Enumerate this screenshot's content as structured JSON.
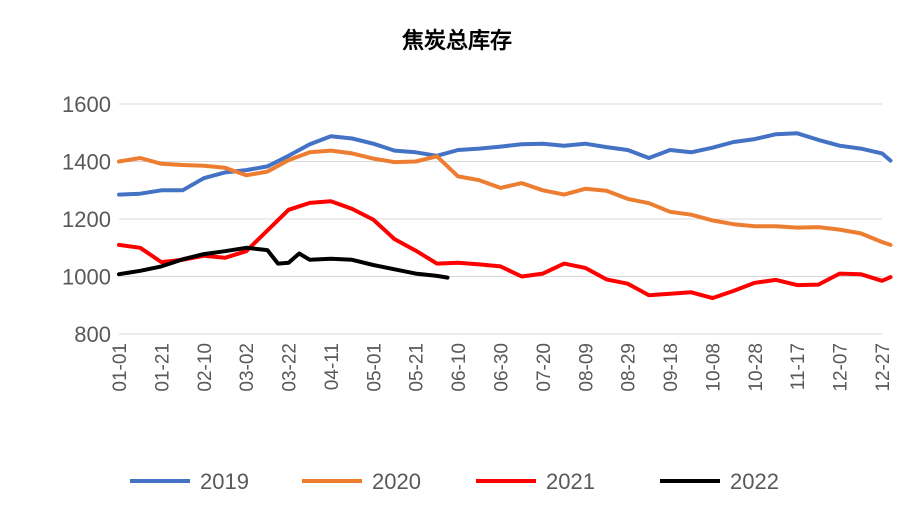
{
  "chart_data": {
    "type": "line",
    "title": "焦炭总库存",
    "xlabel": "",
    "ylabel": "",
    "ylim": [
      800,
      1600
    ],
    "yticks": [
      800,
      1000,
      1200,
      1400,
      1600
    ],
    "grid": true,
    "legend_position": "bottom",
    "x_tick_labels": [
      "01-01",
      "01-21",
      "02-10",
      "03-02",
      "03-22",
      "04-11",
      "05-01",
      "05-21",
      "06-10",
      "06-30",
      "07-20",
      "08-09",
      "08-29",
      "09-18",
      "10-08",
      "10-28",
      "11-17",
      "12-07",
      "12-27"
    ],
    "series": [
      {
        "name": "2019",
        "color": "#4472C4",
        "values": [
          [
            "01-01",
            1285
          ],
          [
            "01-11",
            1288
          ],
          [
            "01-21",
            1300
          ],
          [
            "01-31",
            1300
          ],
          [
            "02-10",
            1342
          ],
          [
            "02-20",
            1362
          ],
          [
            "03-02",
            1370
          ],
          [
            "03-12",
            1383
          ],
          [
            "03-22",
            1420
          ],
          [
            "04-01",
            1460
          ],
          [
            "04-11",
            1488
          ],
          [
            "04-21",
            1480
          ],
          [
            "05-01",
            1462
          ],
          [
            "05-11",
            1438
          ],
          [
            "05-21",
            1432
          ],
          [
            "05-31",
            1420
          ],
          [
            "06-10",
            1440
          ],
          [
            "06-20",
            1445
          ],
          [
            "06-30",
            1452
          ],
          [
            "07-10",
            1460
          ],
          [
            "07-20",
            1462
          ],
          [
            "07-30",
            1455
          ],
          [
            "08-09",
            1462
          ],
          [
            "08-19",
            1450
          ],
          [
            "08-29",
            1440
          ],
          [
            "09-08",
            1412
          ],
          [
            "09-18",
            1440
          ],
          [
            "09-28",
            1432
          ],
          [
            "10-08",
            1448
          ],
          [
            "10-18",
            1468
          ],
          [
            "10-28",
            1478
          ],
          [
            "11-07",
            1495
          ],
          [
            "11-17",
            1498
          ],
          [
            "11-27",
            1475
          ],
          [
            "12-07",
            1455
          ],
          [
            "12-17",
            1445
          ],
          [
            "12-27",
            1428
          ],
          [
            "12-31",
            1403
          ]
        ]
      },
      {
        "name": "2020",
        "color": "#ED7D31",
        "values": [
          [
            "01-01",
            1400
          ],
          [
            "01-11",
            1412
          ],
          [
            "01-21",
            1392
          ],
          [
            "01-31",
            1388
          ],
          [
            "02-10",
            1385
          ],
          [
            "02-20",
            1378
          ],
          [
            "03-02",
            1352
          ],
          [
            "03-12",
            1365
          ],
          [
            "03-22",
            1405
          ],
          [
            "04-01",
            1432
          ],
          [
            "04-11",
            1438
          ],
          [
            "04-21",
            1428
          ],
          [
            "05-01",
            1410
          ],
          [
            "05-11",
            1398
          ],
          [
            "05-21",
            1400
          ],
          [
            "05-31",
            1418
          ],
          [
            "06-10",
            1348
          ],
          [
            "06-20",
            1335
          ],
          [
            "06-30",
            1308
          ],
          [
            "07-10",
            1325
          ],
          [
            "07-20",
            1300
          ],
          [
            "07-30",
            1285
          ],
          [
            "08-09",
            1305
          ],
          [
            "08-19",
            1298
          ],
          [
            "08-29",
            1270
          ],
          [
            "09-08",
            1255
          ],
          [
            "09-18",
            1225
          ],
          [
            "09-28",
            1215
          ],
          [
            "10-08",
            1195
          ],
          [
            "10-18",
            1182
          ],
          [
            "10-28",
            1175
          ],
          [
            "11-07",
            1175
          ],
          [
            "11-17",
            1170
          ],
          [
            "11-27",
            1172
          ],
          [
            "12-07",
            1163
          ],
          [
            "12-17",
            1150
          ],
          [
            "12-27",
            1120
          ],
          [
            "12-31",
            1110
          ]
        ]
      },
      {
        "name": "2021",
        "color": "#FF0000",
        "values": [
          [
            "01-01",
            1110
          ],
          [
            "01-11",
            1100
          ],
          [
            "01-21",
            1050
          ],
          [
            "01-31",
            1058
          ],
          [
            "02-10",
            1072
          ],
          [
            "02-20",
            1065
          ],
          [
            "03-02",
            1088
          ],
          [
            "03-12",
            1160
          ],
          [
            "03-22",
            1232
          ],
          [
            "04-01",
            1256
          ],
          [
            "04-11",
            1262
          ],
          [
            "04-21",
            1235
          ],
          [
            "05-01",
            1198
          ],
          [
            "05-11",
            1130
          ],
          [
            "05-21",
            1090
          ],
          [
            "05-31",
            1045
          ],
          [
            "06-10",
            1048
          ],
          [
            "06-20",
            1042
          ],
          [
            "06-30",
            1035
          ],
          [
            "07-10",
            1000
          ],
          [
            "07-20",
            1010
          ],
          [
            "07-30",
            1045
          ],
          [
            "08-09",
            1030
          ],
          [
            "08-19",
            990
          ],
          [
            "08-29",
            975
          ],
          [
            "09-08",
            935
          ],
          [
            "09-18",
            940
          ],
          [
            "09-28",
            945
          ],
          [
            "10-08",
            925
          ],
          [
            "10-18",
            950
          ],
          [
            "10-28",
            978
          ],
          [
            "11-07",
            988
          ],
          [
            "11-17",
            970
          ],
          [
            "11-27",
            972
          ],
          [
            "12-07",
            1010
          ],
          [
            "12-17",
            1008
          ],
          [
            "12-27",
            985
          ],
          [
            "12-31",
            998
          ]
        ]
      },
      {
        "name": "2022",
        "color": "#000000",
        "values": [
          [
            "01-01",
            1008
          ],
          [
            "01-11",
            1020
          ],
          [
            "01-21",
            1035
          ],
          [
            "01-31",
            1060
          ],
          [
            "02-10",
            1078
          ],
          [
            "02-20",
            1088
          ],
          [
            "03-02",
            1100
          ],
          [
            "03-12",
            1092
          ],
          [
            "03-17",
            1045
          ],
          [
            "03-22",
            1048
          ],
          [
            "03-27",
            1080
          ],
          [
            "04-01",
            1058
          ],
          [
            "04-11",
            1062
          ],
          [
            "04-21",
            1058
          ],
          [
            "05-01",
            1040
          ],
          [
            "05-11",
            1025
          ],
          [
            "05-21",
            1010
          ],
          [
            "05-31",
            1002
          ],
          [
            "06-05",
            996
          ]
        ]
      }
    ]
  }
}
